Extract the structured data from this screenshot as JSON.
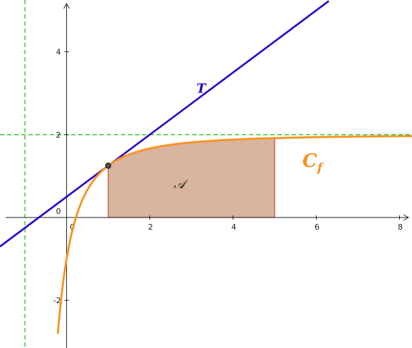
{
  "chart_data": {
    "type": "line",
    "xlim": [
      -1.6,
      8.3
    ],
    "ylim": [
      -3.15,
      5.25
    ],
    "x_ticks": [
      0,
      2,
      4,
      6,
      8
    ],
    "y_ticks": [
      -2,
      0,
      2,
      4
    ],
    "x_tick_labels": [
      "0",
      "2",
      "4",
      "6",
      "8"
    ],
    "y_tick_labels": [
      "-2",
      "0",
      "2",
      "4"
    ],
    "grid": false,
    "curve": {
      "name": "C",
      "subscript": "f",
      "color": "#f7931e",
      "function": "2 - 3/(x+1)^2",
      "points": [
        {
          "x": -0.21,
          "y": -2.8
        },
        {
          "x": -0.1,
          "y": -1.7
        },
        {
          "x": 0,
          "y": -1.0
        },
        {
          "x": 0.25,
          "y": 0.08
        },
        {
          "x": 0.5,
          "y": 0.67
        },
        {
          "x": 0.75,
          "y": 1.02
        },
        {
          "x": 1,
          "y": 1.25
        },
        {
          "x": 1.5,
          "y": 1.52
        },
        {
          "x": 2,
          "y": 1.67
        },
        {
          "x": 3,
          "y": 1.81
        },
        {
          "x": 4,
          "y": 1.88
        },
        {
          "x": 5,
          "y": 1.92
        },
        {
          "x": 6,
          "y": 1.94
        },
        {
          "x": 7,
          "y": 1.95
        },
        {
          "x": 8.3,
          "y": 1.96
        }
      ]
    },
    "tangent": {
      "name": "T",
      "color": "#2e00c8",
      "slope": 0.75,
      "intercept": 0.5,
      "x_range": [
        -1.6,
        6.3
      ]
    },
    "tangent_point": {
      "x": 1,
      "y": 1.25
    },
    "asymptotes": {
      "color": "#22c422",
      "vertical_x": -1,
      "horizontal_y": 2
    },
    "area": {
      "name": "𝒜",
      "from_x": 1,
      "to_x": 5,
      "fill_color": "#d9b49e",
      "stroke_color": "#b5502c"
    }
  }
}
